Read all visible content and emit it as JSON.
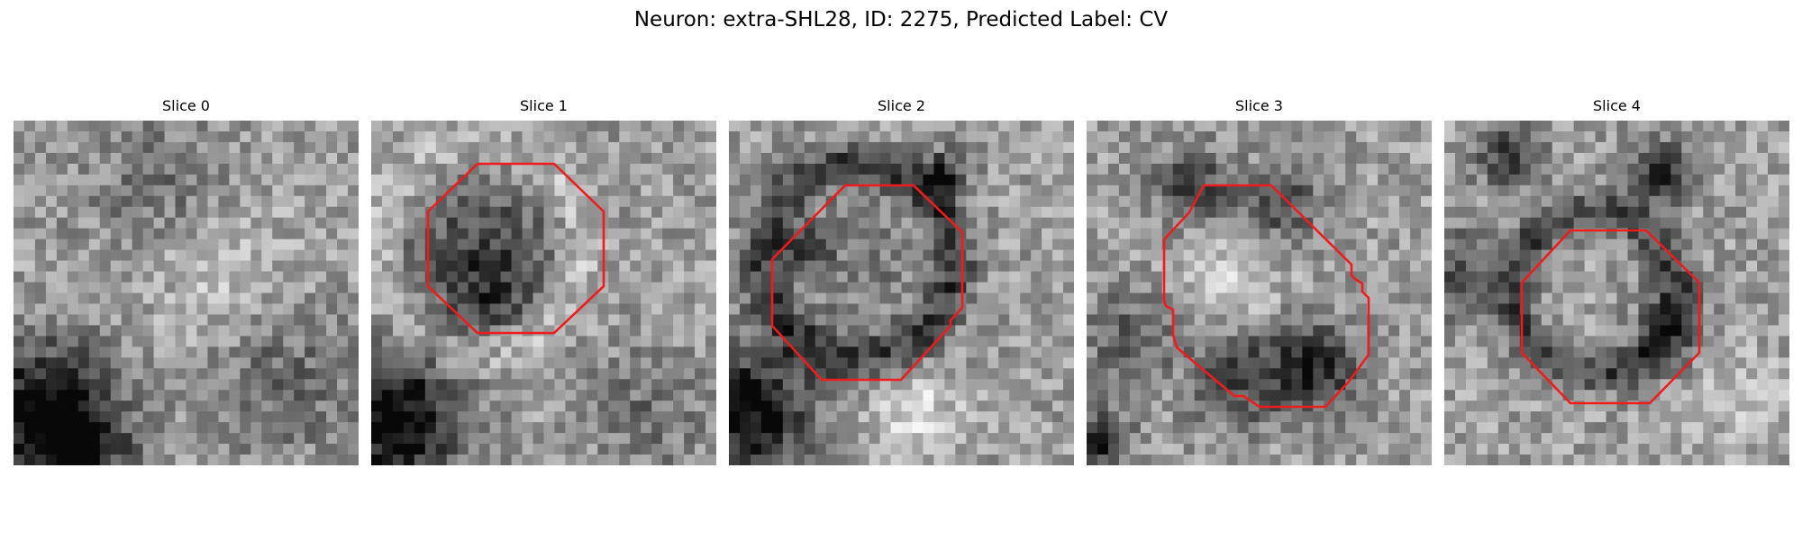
{
  "figure": {
    "title": "Neuron: extra-SHL28, ID: 2275, Predicted Label: CV"
  },
  "colors": {
    "contour": "#ee1c1c",
    "background": "#ffffff"
  },
  "slices": [
    {
      "label": "Slice 0",
      "has_contour": false
    },
    {
      "label": "Slice 1",
      "has_contour": true
    },
    {
      "label": "Slice 2",
      "has_contour": true
    },
    {
      "label": "Slice 3",
      "has_contour": true
    },
    {
      "label": "Slice 4",
      "has_contour": true
    }
  ]
}
